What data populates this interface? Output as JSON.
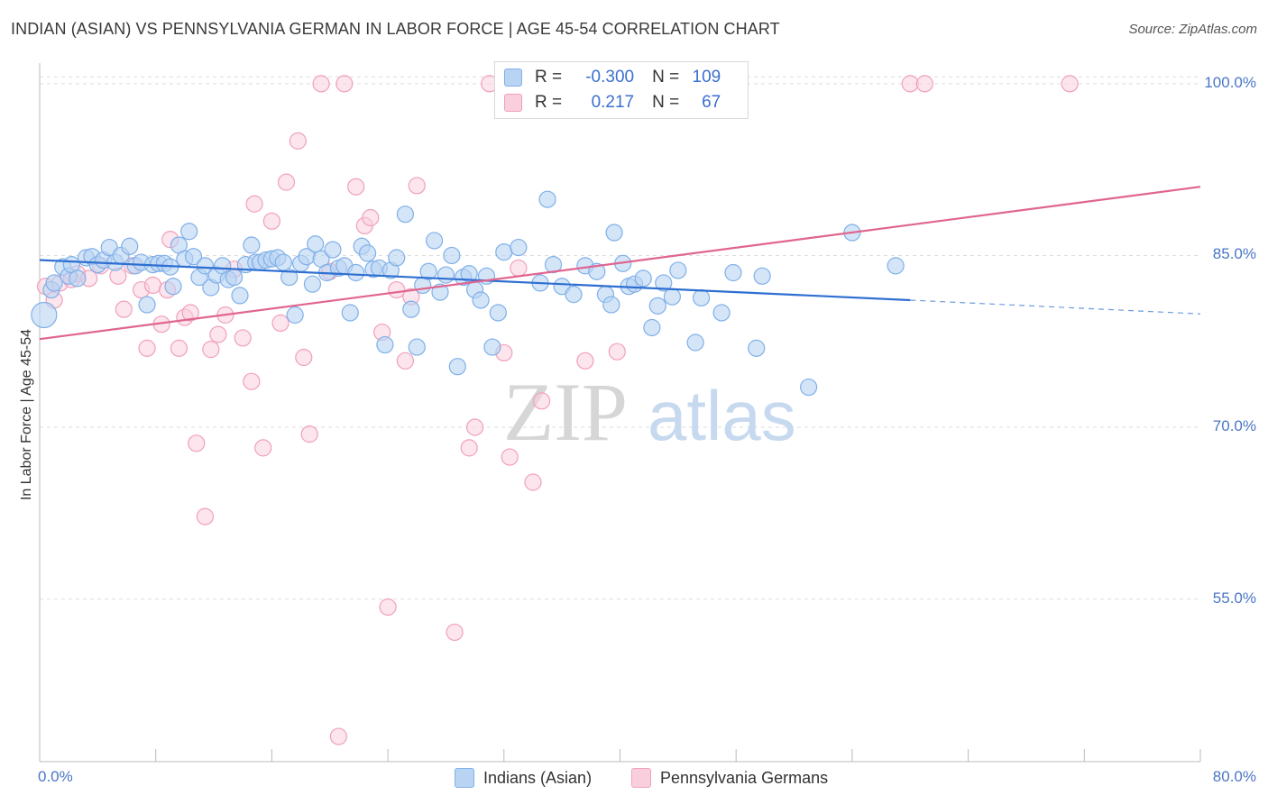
{
  "title": "INDIAN (ASIAN) VS PENNSYLVANIA GERMAN IN LABOR FORCE | AGE 45-54 CORRELATION CHART",
  "source": "Source: ZipAtlas.com",
  "colors": {
    "indians": "#7fb0e8",
    "indians_fill": "#b9d3f3",
    "indians_line": "#2e6fd1",
    "penn": "#f0a0bc",
    "penn_fill": "#f9cfdd",
    "penn_line": "#e0658f",
    "tick_label": "#4a76c6",
    "grid": "#dddddd"
  },
  "stats_box": {
    "rows": [
      {
        "r_label": "R =",
        "r_value": "-0.300",
        "n_label": "N =",
        "n_value": "109"
      },
      {
        "r_label": "R =",
        "r_value": "0.217",
        "n_label": "N =",
        "n_value": "67"
      }
    ]
  },
  "watermark": {
    "a": "ZIP",
    "b": "atlas"
  },
  "chart_data": {
    "type": "scatter",
    "xlabel": "",
    "ylabel": "In Labor Force | Age 45-54",
    "xlim": [
      0,
      80
    ],
    "ylim": [
      40,
      102
    ],
    "x_tick_labels": [
      "0.0%",
      "80.0%"
    ],
    "y_ticks": [
      55,
      70,
      85,
      100
    ],
    "y_tick_labels": [
      "55.0%",
      "70.0%",
      "85.0%",
      "100.0%"
    ],
    "grid": true,
    "legend_position": "bottom",
    "series": [
      {
        "name": "Indians (Asian)",
        "r": -0.3,
        "n": 109,
        "trend": {
          "x0": 0,
          "y0": 84.6,
          "x1": 60,
          "y1": 81.1,
          "dashed_to_x": 80,
          "dashed_y": 79.9
        },
        "points": [
          [
            0.3,
            79.8
          ],
          [
            0.8,
            82.0
          ],
          [
            1.0,
            82.6
          ],
          [
            1.6,
            84.0
          ],
          [
            2.0,
            83.2
          ],
          [
            2.2,
            84.2
          ],
          [
            2.6,
            83.0
          ],
          [
            3.2,
            84.8
          ],
          [
            3.6,
            84.9
          ],
          [
            4.0,
            84.2
          ],
          [
            4.4,
            84.6
          ],
          [
            4.8,
            85.7
          ],
          [
            5.2,
            84.4
          ],
          [
            5.6,
            85.0
          ],
          [
            6.2,
            85.8
          ],
          [
            6.6,
            84.1
          ],
          [
            7.0,
            84.4
          ],
          [
            7.4,
            80.7
          ],
          [
            7.8,
            84.2
          ],
          [
            8.2,
            84.3
          ],
          [
            8.6,
            84.3
          ],
          [
            9.0,
            84.0
          ],
          [
            9.2,
            82.3
          ],
          [
            9.6,
            85.9
          ],
          [
            10.0,
            84.7
          ],
          [
            10.3,
            87.1
          ],
          [
            10.6,
            84.9
          ],
          [
            11.0,
            83.1
          ],
          [
            11.4,
            84.1
          ],
          [
            11.8,
            82.2
          ],
          [
            12.2,
            83.3
          ],
          [
            12.6,
            84.1
          ],
          [
            13.0,
            82.9
          ],
          [
            13.4,
            83.1
          ],
          [
            13.8,
            81.5
          ],
          [
            14.2,
            84.2
          ],
          [
            14.6,
            85.9
          ],
          [
            14.9,
            84.4
          ],
          [
            15.2,
            84.4
          ],
          [
            15.6,
            84.6
          ],
          [
            16.0,
            84.7
          ],
          [
            16.4,
            84.8
          ],
          [
            16.8,
            84.4
          ],
          [
            17.2,
            83.1
          ],
          [
            17.6,
            79.8
          ],
          [
            18.0,
            84.3
          ],
          [
            18.4,
            84.9
          ],
          [
            18.8,
            82.5
          ],
          [
            19.0,
            86.0
          ],
          [
            19.4,
            84.7
          ],
          [
            19.8,
            83.5
          ],
          [
            20.2,
            85.5
          ],
          [
            20.6,
            83.9
          ],
          [
            21.0,
            84.1
          ],
          [
            21.4,
            80.0
          ],
          [
            21.8,
            83.5
          ],
          [
            22.2,
            85.8
          ],
          [
            22.6,
            85.2
          ],
          [
            23.0,
            83.8
          ],
          [
            23.4,
            83.9
          ],
          [
            23.8,
            77.2
          ],
          [
            24.2,
            83.7
          ],
          [
            24.6,
            84.8
          ],
          [
            25.2,
            88.6
          ],
          [
            25.6,
            80.3
          ],
          [
            26.0,
            77.0
          ],
          [
            26.4,
            82.4
          ],
          [
            26.8,
            83.6
          ],
          [
            27.2,
            86.3
          ],
          [
            27.6,
            81.8
          ],
          [
            28.0,
            83.3
          ],
          [
            28.4,
            85.0
          ],
          [
            28.8,
            75.3
          ],
          [
            29.2,
            83.1
          ],
          [
            29.6,
            83.4
          ],
          [
            30.0,
            82.0
          ],
          [
            30.4,
            81.1
          ],
          [
            30.8,
            83.2
          ],
          [
            31.2,
            77.0
          ],
          [
            31.6,
            80.0
          ],
          [
            32.0,
            85.3
          ],
          [
            33.0,
            85.7
          ],
          [
            34.5,
            82.6
          ],
          [
            35.0,
            89.9
          ],
          [
            35.4,
            84.2
          ],
          [
            36.0,
            82.3
          ],
          [
            36.8,
            81.6
          ],
          [
            37.6,
            84.1
          ],
          [
            38.4,
            83.6
          ],
          [
            39.0,
            81.6
          ],
          [
            39.4,
            80.7
          ],
          [
            39.6,
            87.0
          ],
          [
            40.2,
            84.3
          ],
          [
            40.6,
            82.3
          ],
          [
            41.0,
            82.5
          ],
          [
            41.6,
            83.0
          ],
          [
            42.2,
            78.7
          ],
          [
            42.6,
            80.6
          ],
          [
            43.0,
            82.6
          ],
          [
            43.6,
            81.4
          ],
          [
            44.0,
            83.7
          ],
          [
            45.2,
            77.4
          ],
          [
            45.6,
            81.3
          ],
          [
            47.0,
            80.0
          ],
          [
            47.8,
            83.5
          ],
          [
            49.4,
            76.9
          ],
          [
            49.8,
            83.2
          ],
          [
            53.0,
            73.5
          ],
          [
            56.0,
            87.0
          ],
          [
            59.0,
            84.1
          ]
        ]
      },
      {
        "name": "Pennsylvania Germans",
        "r": 0.217,
        "n": 67,
        "trend": {
          "x0": 0,
          "y0": 77.7,
          "x1": 80,
          "y1": 91.0
        },
        "points": [
          [
            0.4,
            82.3
          ],
          [
            1.0,
            81.1
          ],
          [
            1.4,
            82.6
          ],
          [
            2.2,
            82.9
          ],
          [
            2.6,
            83.4
          ],
          [
            3.4,
            83.0
          ],
          [
            4.2,
            84.1
          ],
          [
            5.4,
            83.2
          ],
          [
            5.8,
            80.3
          ],
          [
            6.4,
            84.1
          ],
          [
            7.0,
            82.0
          ],
          [
            7.4,
            76.9
          ],
          [
            7.8,
            82.4
          ],
          [
            8.4,
            79.0
          ],
          [
            8.8,
            82.0
          ],
          [
            9.0,
            86.4
          ],
          [
            9.6,
            76.9
          ],
          [
            10.0,
            79.6
          ],
          [
            10.4,
            80.0
          ],
          [
            10.8,
            68.6
          ],
          [
            11.4,
            62.2
          ],
          [
            11.8,
            76.8
          ],
          [
            12.3,
            78.1
          ],
          [
            12.8,
            79.8
          ],
          [
            13.4,
            83.8
          ],
          [
            14.0,
            77.8
          ],
          [
            14.6,
            74.0
          ],
          [
            14.8,
            89.5
          ],
          [
            15.4,
            68.2
          ],
          [
            16.0,
            88.0
          ],
          [
            16.6,
            79.1
          ],
          [
            17.0,
            91.4
          ],
          [
            17.8,
            95.0
          ],
          [
            18.2,
            76.1
          ],
          [
            18.6,
            69.4
          ],
          [
            19.4,
            100.0
          ],
          [
            20.0,
            83.6
          ],
          [
            20.6,
            43.0
          ],
          [
            21.0,
            100.0
          ],
          [
            21.8,
            91.0
          ],
          [
            22.4,
            87.6
          ],
          [
            22.8,
            88.3
          ],
          [
            23.6,
            78.3
          ],
          [
            24.0,
            54.3
          ],
          [
            24.6,
            82.0
          ],
          [
            25.2,
            75.8
          ],
          [
            25.6,
            81.4
          ],
          [
            26.0,
            91.1
          ],
          [
            28.6,
            52.1
          ],
          [
            29.6,
            68.2
          ],
          [
            30.0,
            70.0
          ],
          [
            31.0,
            100.0
          ],
          [
            32.0,
            76.5
          ],
          [
            32.4,
            67.4
          ],
          [
            33.0,
            83.9
          ],
          [
            34.0,
            65.2
          ],
          [
            34.6,
            72.3
          ],
          [
            37.6,
            75.8
          ],
          [
            39.8,
            76.6
          ],
          [
            46.4,
            100.0
          ],
          [
            60.0,
            100.0
          ],
          [
            61.0,
            100.0
          ],
          [
            71.0,
            100.0
          ]
        ]
      }
    ]
  }
}
